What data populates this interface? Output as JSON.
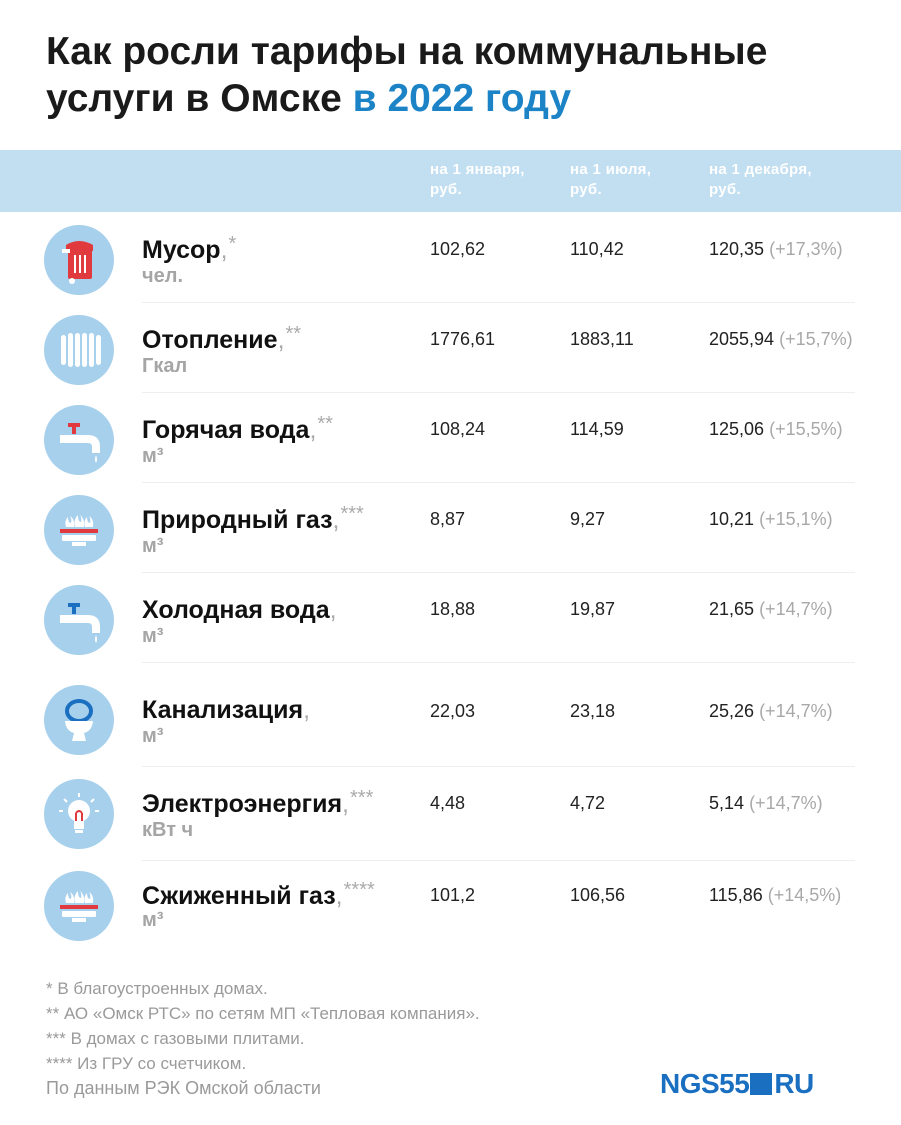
{
  "title": {
    "main": "Как росли тарифы на коммунальные услуги в Омске",
    "accent": "в 2022 году"
  },
  "columns": [
    {
      "line1": "на 1 января,",
      "line2": "руб."
    },
    {
      "line1": "на 1 июля,",
      "line2": "руб."
    },
    {
      "line1": "на 1 декабря,",
      "line2": "руб."
    }
  ],
  "rows": [
    {
      "icon": "trash-bin-icon",
      "name": "Мусор",
      "mark": "*",
      "unit": "чел.",
      "jan": "102,62",
      "jul": "110,42",
      "dec": "120,35",
      "pct": "(+17,3%)"
    },
    {
      "icon": "radiator-icon",
      "name": "Отопление",
      "mark": "**",
      "unit": "Гкал",
      "jan": "1776,61",
      "jul": "1883,11",
      "dec": "2055,94",
      "pct": "(+15,7%)"
    },
    {
      "icon": "hot-water-tap-icon",
      "name": "Горячая вода",
      "mark": "**",
      "unit": "м³",
      "jan": "108,24",
      "jul": "114,59",
      "dec": "125,06",
      "pct": "(+15,5%)"
    },
    {
      "icon": "gas-burner-icon",
      "name": "Природный газ",
      "mark": "***",
      "unit": "м³",
      "jan": "8,87",
      "jul": "9,27",
      "dec": "10,21",
      "pct": "(+15,1%)"
    },
    {
      "icon": "cold-water-tap-icon",
      "name": "Холодная вода",
      "mark": "",
      "unit": "м³",
      "jan": "18,88",
      "jul": "19,87",
      "dec": "21,65",
      "pct": "(+14,7%)"
    },
    {
      "icon": "toilet-icon",
      "name": "Канализация",
      "mark": "",
      "unit": "м³",
      "jan": "22,03",
      "jul": "23,18",
      "dec": "25,26",
      "pct": "(+14,7%)"
    },
    {
      "icon": "light-bulb-icon",
      "name": "Электроэнергия",
      "mark": "***",
      "unit": "кВт ч",
      "jan": "4,48",
      "jul": "4,72",
      "dec": "5,14",
      "pct": "(+14,7%)"
    },
    {
      "icon": "gas-burner-icon",
      "name": "Сжиженный газ",
      "mark": "****",
      "unit": "м³",
      "jan": "101,2",
      "jul": "106,56",
      "dec": "115,86",
      "pct": "(+14,5%)"
    }
  ],
  "notes": [
    "* В благоустроенных домах.",
    "** АО «Омск РТС» по сетям МП «Тепловая компания».",
    "*** В домах с газовыми плитами.",
    "**** Из ГРУ со счетчиком."
  ],
  "source": "По данным РЭК Омской области",
  "logo": {
    "main": "NGS55",
    "suffix": "RU"
  },
  "colors": {
    "accent": "#1b83c6",
    "header_band": "#c2dff2",
    "icon_circle": "#a7d0ec",
    "icon_red": "#e03a3e"
  },
  "chart_data": {
    "type": "table",
    "title": "Как росли тарифы на коммунальные услуги в Омске в 2022 году",
    "columns": [
      "на 1 января, руб.",
      "на 1 июля, руб.",
      "на 1 декабря, руб."
    ],
    "categories": [
      "Мусор",
      "Отопление",
      "Горячая вода",
      "Природный газ",
      "Холодная вода",
      "Канализация",
      "Электроэнергия",
      "Сжиженный газ"
    ],
    "units": [
      "чел.",
      "Гкал",
      "м³",
      "м³",
      "м³",
      "м³",
      "кВт ч",
      "м³"
    ],
    "series": [
      {
        "name": "на 1 января, руб.",
        "values": [
          102.62,
          1776.61,
          108.24,
          8.87,
          18.88,
          22.03,
          4.48,
          101.2
        ]
      },
      {
        "name": "на 1 июля, руб.",
        "values": [
          110.42,
          1883.11,
          114.59,
          9.27,
          19.87,
          23.18,
          4.72,
          106.56
        ]
      },
      {
        "name": "на 1 декабря, руб.",
        "values": [
          120.35,
          2055.94,
          125.06,
          10.21,
          21.65,
          25.26,
          5.14,
          115.86
        ]
      }
    ],
    "growth_percent": [
      17.3,
      15.7,
      15.5,
      15.1,
      14.7,
      14.7,
      14.7,
      14.5
    ]
  }
}
